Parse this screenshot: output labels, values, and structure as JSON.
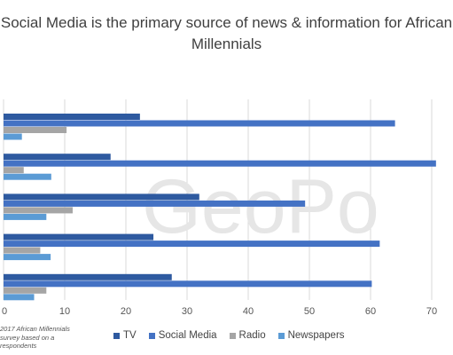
{
  "chart_data": {
    "type": "bar",
    "orientation": "horizontal",
    "title": "Social Media is the primary source of news & information for African Millennials",
    "xlim": [
      0,
      70
    ],
    "xticks": [
      0,
      10,
      20,
      30,
      40,
      50,
      60,
      70
    ],
    "grid": "vertical",
    "legend_position": "bottom",
    "categories": [
      "",
      "",
      "",
      "",
      ""
    ],
    "series": [
      {
        "name": "TV",
        "color": "#2e5aa0",
        "values": [
          22.3,
          17.5,
          32,
          24.5,
          27.5
        ]
      },
      {
        "name": "Social Media",
        "color": "#4472c4",
        "values": [
          64,
          70.7,
          49.3,
          61.5,
          60.2
        ]
      },
      {
        "name": "Radio",
        "color": "#a5a5a5",
        "values": [
          10.3,
          3.3,
          11.3,
          6,
          7
        ]
      },
      {
        "name": "Newspapers",
        "color": "#5b9bd5",
        "values": [
          3,
          7.8,
          7,
          7.7,
          5
        ]
      }
    ],
    "watermark": "GeoPo",
    "note_lines": [
      "2017 African Millennials",
      "survey based on a",
      "respondents"
    ]
  }
}
